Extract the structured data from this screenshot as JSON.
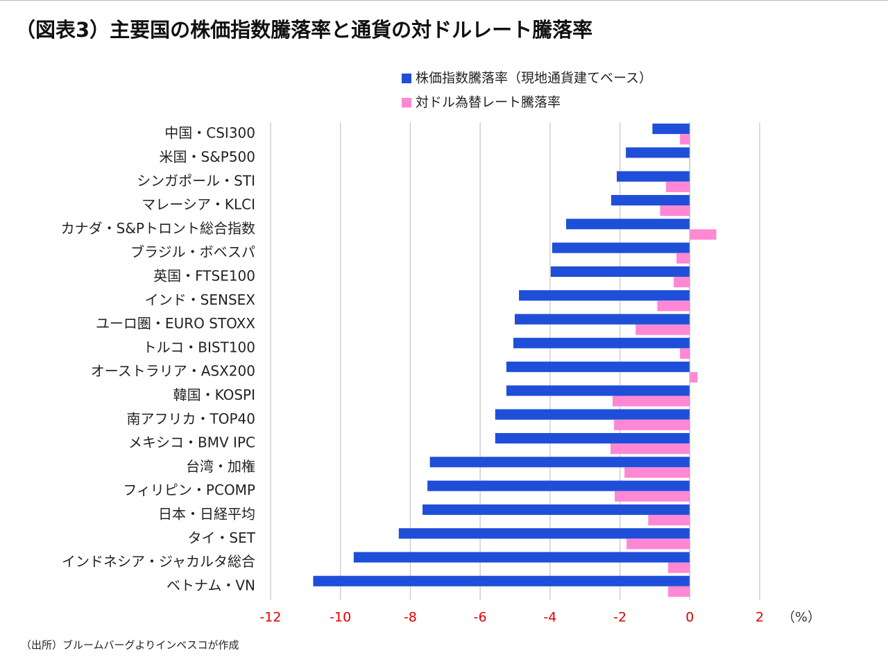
{
  "chart_data": {
    "type": "barh",
    "title": "（図表3）主要国の株価指数騰落率と通貨の対ドルレート騰落率",
    "categories": [
      "中国・CSI300",
      "米国・S&P500",
      "シンガポール・STI",
      "マレーシア・KLCI",
      "カナダ・S&Pトロント総合指数",
      "ブラジル・ボベスパ",
      "英国・FTSE100",
      "インド・SENSEX",
      "ユーロ圏・EURO STOXX",
      "トルコ・BIST100",
      "オーストラリア・ASX200",
      "韓国・KOSPI",
      "南アフリカ・TOP40",
      "メキシコ・BMV IPC",
      "台湾・加権",
      "フィリピン・PCOMP",
      "日本・日経平均",
      "タイ・SET",
      "インドネシア・ジャカルタ総合",
      "ベトナム・VN"
    ],
    "series": [
      {
        "name": "株価指数騰落率（現地通貨建てベース）",
        "color": "#1f4fd8",
        "values": [
          -1.07,
          -1.83,
          -2.09,
          -2.25,
          -3.54,
          -3.94,
          -3.98,
          -4.89,
          -5.01,
          -5.05,
          -5.25,
          -5.25,
          -5.57,
          -5.57,
          -7.44,
          -7.51,
          -7.65,
          -8.33,
          -9.62,
          -10.78
        ]
      },
      {
        "name": "対ドル為替レート騰落率",
        "color": "#ff88d4",
        "values": [
          -0.28,
          0,
          -0.68,
          -0.85,
          0.76,
          -0.38,
          -0.46,
          -0.93,
          -1.55,
          -0.28,
          0.22,
          -2.21,
          -2.17,
          -2.27,
          -1.87,
          -2.15,
          -1.19,
          -1.81,
          -0.62,
          -0.62
        ]
      }
    ],
    "xlim": [
      -12,
      2
    ],
    "xticks": [
      -12,
      -10,
      -8,
      -6,
      -4,
      -2,
      0,
      2
    ],
    "x_unit": "（%）",
    "tick_color": "#e00000",
    "grid": true,
    "source": "（出所）ブルームバーグよりインベスコが作成"
  }
}
